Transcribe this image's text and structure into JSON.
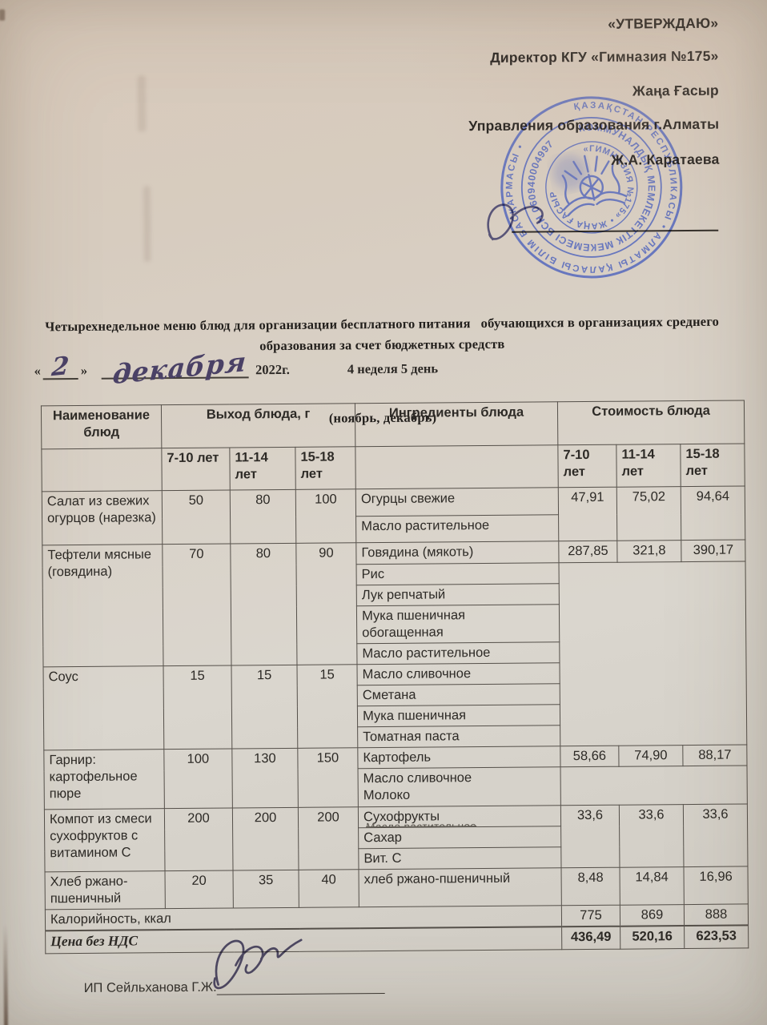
{
  "approval": {
    "approve_label": "«УТВЕРЖДАЮ»",
    "line1": "Директор КГУ «Гимназия №175»",
    "line2": "Жаңа Ғасыр",
    "line3": "Управления образования г.Алматы",
    "signer_name": "Ж.А. Каратаева"
  },
  "stamp": {
    "color": "#4a60bc",
    "outer_ring": "ҚАЗАҚСТАН РЕСПУБЛИКАСЫ • АЛМАТЫ ҚАЛАСЫ БІЛІМ БАСҚАРМАСЫ •",
    "middle_ring": "КОММУНАЛДЫҚ МЕМЛЕКЕТТІК МЕКЕМЕСІ БСН 060940004997",
    "inner_ring": "«ГИМНАЗИЯ №175» • ЖАҢА ҒАСЫР"
  },
  "title": {
    "line1": "Четырехнедельное меню блюд для организации бесплатного питания   обучающихся в организациях среднего образования за счет бюджетных средств",
    "line2": "(ноябрь, декабрь)"
  },
  "date_line": {
    "open_quote": "«",
    "day": "2",
    "close_quote": "»",
    "month": "декабря",
    "year": "2022г.",
    "week_day": "4 неделя 5 день"
  },
  "table": {
    "headers": {
      "name": "Наименование\nблюд",
      "portion": "Выход блюда, г",
      "ingredients": "Ингредиенты блюда",
      "cost": "Стоимость блюда"
    },
    "portion_age_groups": [
      "7-10 лет",
      "11-14\nлет",
      "15-18\nлет"
    ],
    "cost_age_groups": [
      "7-10\nлет",
      "11-14\nлет",
      "15-18\nлет"
    ],
    "dishes": [
      {
        "name": "Салат из свежих огурцов (нарезка)",
        "portions": [
          "50",
          "80",
          "100"
        ],
        "ingredients": [
          "Огурцы свежие",
          "Масло растительное"
        ],
        "prices": [
          "47,91",
          "75,02",
          "94,64"
        ]
      },
      {
        "name": "Тефтели мясные (говядина)",
        "portions": [
          "70",
          "80",
          "90"
        ],
        "ingredients": [
          "Говядина (мякоть)",
          "Рис",
          "Лук репчатый",
          "Мука пшеничная\nобогащенная",
          "Масло растительное"
        ],
        "prices": [
          "287,85",
          "321,8",
          "390,17"
        ]
      },
      {
        "name": "Соус",
        "portions": [
          "15",
          "15",
          "15"
        ],
        "ingredients": [
          "Масло сливочное",
          "Сметана",
          "Мука пшеничная",
          "Томатная паста"
        ],
        "prices": []
      },
      {
        "name": "Гарнир: картофельное пюре",
        "portions": [
          "100",
          "130",
          "150"
        ],
        "ingredients": [
          "Картофель",
          "Масло сливочное\nМолоко"
        ],
        "prices": [
          "58,66",
          "74,90",
          "88,17"
        ]
      },
      {
        "name": "Компот из смеси сухофруктов с витамином С",
        "portions": [
          "200",
          "200",
          "200"
        ],
        "ingredients": [
          "Сухофрукты",
          "Сахар",
          "Вит. С"
        ],
        "struck_ingredient": "Масло растительное",
        "prices": [
          "33,6",
          "33,6",
          "33,6"
        ]
      },
      {
        "name": "Хлеб ржано-пшеничный",
        "portions": [
          "20",
          "35",
          "40"
        ],
        "ingredients": [
          "хлеб ржано-пшеничный"
        ],
        "prices": [
          "8,48",
          "14,84",
          "16,96"
        ]
      }
    ],
    "footer": {
      "calories_label": "Калорийность, ккал",
      "calories": [
        "775",
        "869",
        "888"
      ],
      "total_label": "Цена без  НДС",
      "totals": [
        "436,49",
        "520,16",
        "623,53"
      ]
    }
  },
  "signature_block": {
    "signer": "ИП Сейльханова Г.Ж."
  }
}
